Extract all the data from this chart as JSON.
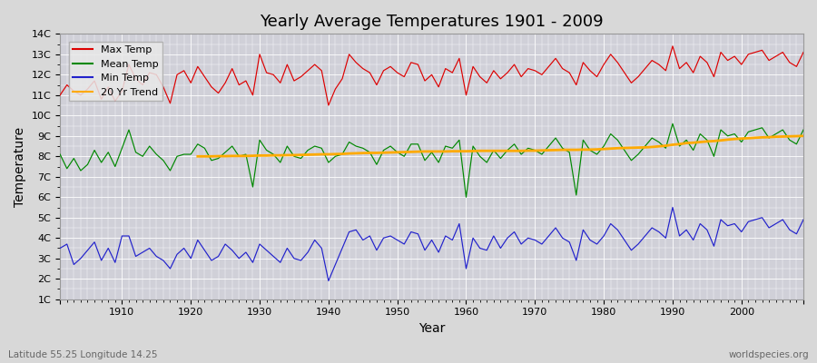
{
  "title": "Yearly Average Temperatures 1901 - 2009",
  "xlabel": "Year",
  "ylabel": "Temperature",
  "bottom_left": "Latitude 55.25 Longitude 14.25",
  "bottom_right": "worldspecies.org",
  "years": [
    1901,
    1902,
    1903,
    1904,
    1905,
    1906,
    1907,
    1908,
    1909,
    1910,
    1911,
    1912,
    1913,
    1914,
    1915,
    1916,
    1917,
    1918,
    1919,
    1920,
    1921,
    1922,
    1923,
    1924,
    1925,
    1926,
    1927,
    1928,
    1929,
    1930,
    1931,
    1932,
    1933,
    1934,
    1935,
    1936,
    1937,
    1938,
    1939,
    1940,
    1941,
    1942,
    1943,
    1944,
    1945,
    1946,
    1947,
    1948,
    1949,
    1950,
    1951,
    1952,
    1953,
    1954,
    1955,
    1956,
    1957,
    1958,
    1959,
    1960,
    1961,
    1962,
    1963,
    1964,
    1965,
    1966,
    1967,
    1968,
    1969,
    1970,
    1971,
    1972,
    1973,
    1974,
    1975,
    1976,
    1977,
    1978,
    1979,
    1980,
    1981,
    1982,
    1983,
    1984,
    1985,
    1986,
    1987,
    1988,
    1989,
    1990,
    1991,
    1992,
    1993,
    1994,
    1995,
    1996,
    1997,
    1998,
    1999,
    2000,
    2001,
    2002,
    2003,
    2004,
    2005,
    2006,
    2007,
    2008,
    2009
  ],
  "max_temp": [
    11.0,
    11.5,
    11.2,
    11.0,
    11.3,
    11.7,
    10.8,
    11.4,
    10.7,
    11.2,
    12.5,
    11.8,
    11.5,
    12.1,
    12.0,
    11.4,
    10.6,
    12.0,
    12.2,
    11.6,
    12.4,
    11.9,
    11.4,
    11.1,
    11.6,
    12.3,
    11.5,
    11.7,
    11.0,
    13.0,
    12.1,
    12.0,
    11.6,
    12.5,
    11.7,
    11.9,
    12.2,
    12.5,
    12.2,
    10.5,
    11.3,
    11.8,
    13.0,
    12.6,
    12.3,
    12.1,
    11.5,
    12.2,
    12.4,
    12.1,
    11.9,
    12.6,
    12.5,
    11.7,
    12.0,
    11.4,
    12.3,
    12.1,
    12.8,
    11.0,
    12.4,
    11.9,
    11.6,
    12.2,
    11.8,
    12.1,
    12.5,
    11.9,
    12.3,
    12.2,
    12.0,
    12.4,
    12.8,
    12.3,
    12.1,
    11.5,
    12.6,
    12.2,
    11.9,
    12.5,
    13.0,
    12.6,
    12.1,
    11.6,
    11.9,
    12.3,
    12.7,
    12.5,
    12.2,
    13.4,
    12.3,
    12.6,
    12.1,
    12.9,
    12.6,
    11.9,
    13.1,
    12.7,
    12.9,
    12.5,
    13.0,
    13.1,
    13.2,
    12.7,
    12.9,
    13.1,
    12.6,
    12.4,
    13.1
  ],
  "mean_temp": [
    8.1,
    7.4,
    7.9,
    7.3,
    7.6,
    8.3,
    7.7,
    8.2,
    7.5,
    8.4,
    9.3,
    8.2,
    8.0,
    8.5,
    8.1,
    7.8,
    7.3,
    8.0,
    8.1,
    8.1,
    8.6,
    8.4,
    7.8,
    7.9,
    8.2,
    8.5,
    8.0,
    8.1,
    6.5,
    8.8,
    8.3,
    8.1,
    7.7,
    8.5,
    8.0,
    7.9,
    8.3,
    8.5,
    8.4,
    7.7,
    8.0,
    8.1,
    8.7,
    8.5,
    8.4,
    8.2,
    7.6,
    8.3,
    8.5,
    8.2,
    8.0,
    8.6,
    8.6,
    7.8,
    8.2,
    7.7,
    8.5,
    8.4,
    8.8,
    6.0,
    8.5,
    8.0,
    7.7,
    8.3,
    7.9,
    8.3,
    8.6,
    8.1,
    8.4,
    8.3,
    8.1,
    8.5,
    8.9,
    8.4,
    8.2,
    6.1,
    8.8,
    8.3,
    8.1,
    8.5,
    9.1,
    8.8,
    8.3,
    7.8,
    8.1,
    8.5,
    8.9,
    8.7,
    8.4,
    9.6,
    8.5,
    8.8,
    8.3,
    9.1,
    8.8,
    8.0,
    9.3,
    9.0,
    9.1,
    8.7,
    9.2,
    9.3,
    9.4,
    8.9,
    9.1,
    9.3,
    8.8,
    8.6,
    9.3
  ],
  "min_temp": [
    3.5,
    3.7,
    2.7,
    3.0,
    3.4,
    3.8,
    2.9,
    3.5,
    2.8,
    4.1,
    4.1,
    3.1,
    3.3,
    3.5,
    3.1,
    2.9,
    2.5,
    3.2,
    3.5,
    3.0,
    3.9,
    3.4,
    2.9,
    3.1,
    3.7,
    3.4,
    3.0,
    3.3,
    2.8,
    3.7,
    3.4,
    3.1,
    2.8,
    3.5,
    3.0,
    2.9,
    3.3,
    3.9,
    3.5,
    1.9,
    2.7,
    3.5,
    4.3,
    4.4,
    3.9,
    4.1,
    3.4,
    4.0,
    4.1,
    3.9,
    3.7,
    4.3,
    4.2,
    3.4,
    3.9,
    3.3,
    4.1,
    3.9,
    4.7,
    2.5,
    4.0,
    3.5,
    3.4,
    4.1,
    3.5,
    4.0,
    4.3,
    3.7,
    4.0,
    3.9,
    3.7,
    4.1,
    4.5,
    4.0,
    3.8,
    2.9,
    4.4,
    3.9,
    3.7,
    4.1,
    4.7,
    4.4,
    3.9,
    3.4,
    3.7,
    4.1,
    4.5,
    4.3,
    4.0,
    5.5,
    4.1,
    4.4,
    3.9,
    4.7,
    4.4,
    3.6,
    4.9,
    4.6,
    4.7,
    4.3,
    4.8,
    4.9,
    5.0,
    4.5,
    4.7,
    4.9,
    4.4,
    4.2,
    4.9
  ],
  "trend_years": [
    1921,
    1922,
    1923,
    1924,
    1925,
    1926,
    1927,
    1928,
    1929,
    1930,
    1931,
    1932,
    1933,
    1934,
    1935,
    1936,
    1937,
    1938,
    1939,
    1940,
    1941,
    1942,
    1943,
    1944,
    1945,
    1946,
    1947,
    1948,
    1949,
    1950,
    1951,
    1952,
    1953,
    1954,
    1955,
    1956,
    1957,
    1958,
    1959,
    1960,
    1961,
    1962,
    1963,
    1964,
    1965,
    1966,
    1967,
    1968,
    1969,
    1970,
    1971,
    1972,
    1973,
    1974,
    1975,
    1976,
    1977,
    1978,
    1979,
    1980,
    1981,
    1982,
    1983,
    1984,
    1985,
    1986,
    1987,
    1988,
    1989,
    1990,
    1991,
    1992,
    1993,
    1994,
    1995,
    1996,
    1997,
    1998,
    1999,
    2000,
    2001,
    2002,
    2003,
    2004,
    2005,
    2006,
    2007,
    2008,
    2009
  ],
  "trend_vals": [
    8.0,
    8.0,
    8.0,
    8.01,
    8.01,
    8.02,
    8.02,
    8.02,
    8.03,
    8.04,
    8.04,
    8.05,
    8.05,
    8.06,
    8.06,
    8.07,
    8.08,
    8.09,
    8.1,
    8.1,
    8.11,
    8.12,
    8.14,
    8.15,
    8.16,
    8.17,
    8.17,
    8.18,
    8.19,
    8.2,
    8.21,
    8.22,
    8.23,
    8.24,
    8.24,
    8.24,
    8.24,
    8.25,
    8.25,
    8.25,
    8.26,
    8.27,
    8.27,
    8.27,
    8.27,
    8.27,
    8.27,
    8.27,
    8.28,
    8.28,
    8.29,
    8.3,
    8.31,
    8.32,
    8.32,
    8.32,
    8.33,
    8.33,
    8.34,
    8.36,
    8.38,
    8.4,
    8.41,
    8.42,
    8.43,
    8.44,
    8.46,
    8.49,
    8.52,
    8.57,
    8.6,
    8.65,
    8.67,
    8.7,
    8.73,
    8.75,
    8.78,
    8.82,
    8.85,
    8.87,
    8.89,
    8.91,
    8.93,
    8.94,
    8.96,
    8.97,
    8.98,
    8.99,
    9.0
  ],
  "ylim": [
    1,
    14
  ],
  "yticks": [
    1,
    2,
    3,
    4,
    5,
    6,
    7,
    8,
    9,
    10,
    11,
    12,
    13,
    14
  ],
  "ytick_labels": [
    "1C",
    "2C",
    "3C",
    "4C",
    "5C",
    "6C",
    "7C",
    "8C",
    "9C",
    "10C",
    "11C",
    "12C",
    "13C",
    "14C"
  ],
  "xticks": [
    1901,
    1910,
    1920,
    1930,
    1940,
    1950,
    1960,
    1970,
    1980,
    1990,
    2000,
    2009
  ],
  "xtick_labels": [
    "",
    "1910",
    "1920",
    "1930",
    "1940",
    "1950",
    "1960",
    "1970",
    "1980",
    "1990",
    "2000",
    ""
  ],
  "xlim": [
    1901,
    2009
  ],
  "bg_color": "#d8d8d8",
  "plot_bg_color": "#d0d0d8",
  "grid_color": "#ffffff",
  "max_color": "#dd0000",
  "mean_color": "#008800",
  "min_color": "#2222cc",
  "trend_color": "#ffaa00",
  "legend_labels": [
    "Max Temp",
    "Mean Temp",
    "Min Temp",
    "20 Yr Trend"
  ]
}
